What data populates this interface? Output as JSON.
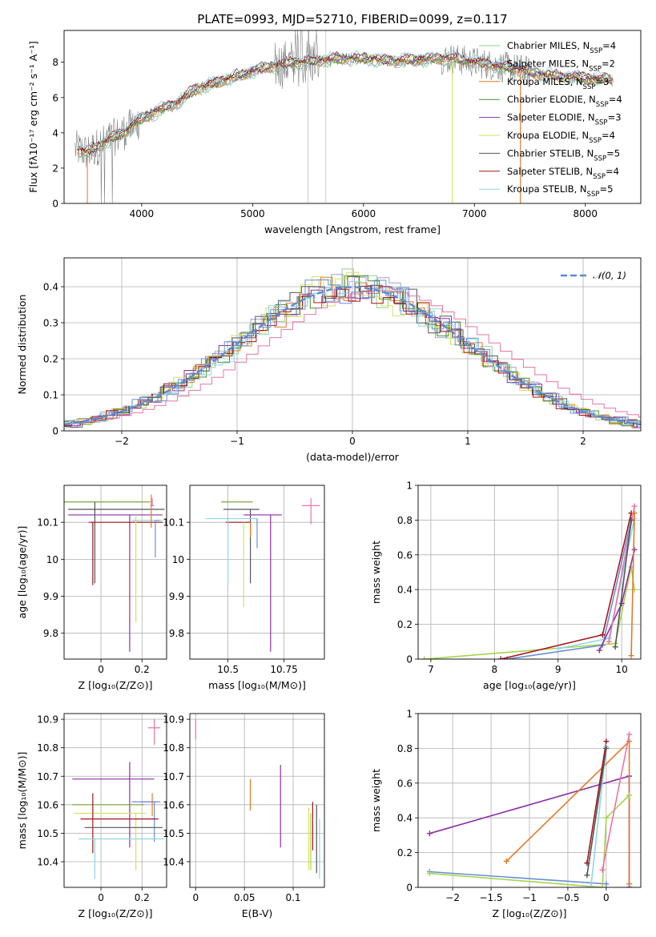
{
  "figure_title": "PLATE=0993, MJD=52710, FIBERID=0099, z=0.117",
  "colors": {
    "Chabrier MILES": "#8fd18f",
    "Salpeter MILES": "#9ca3d8",
    "Kroupa MILES": "#e07b29",
    "Chabrier ELODIE": "#4a8a2c",
    "Salpeter ELODIE": "#8e2fa6",
    "Kroupa ELODIE": "#d6e35b",
    "Chabrier STELIB": "#555555",
    "Salpeter STELIB": "#a3161b",
    "Kroupa STELIB": "#8fd6e6",
    "pink": "#e874a8",
    "blue": "#6a8fd6",
    "lime": "#a6d44a",
    "orange": "#e07b29",
    "olive": "#7aa83a",
    "data": "#808080"
  },
  "chart_data": [
    {
      "id": "spectrum",
      "type": "line",
      "title": "PLATE=0993, MJD=52710, FIBERID=0099, z=0.117",
      "xlabel": "wavelength [Angstrom, rest frame]",
      "ylabel": "Flux [fλ10⁻¹⁷ erg cm⁻² s⁻¹ A⁻¹]",
      "xlim": [
        3300,
        8500
      ],
      "ylim": [
        0,
        9.8
      ],
      "xticks": [
        4000,
        5000,
        6000,
        7000,
        8000
      ],
      "yticks": [
        0,
        2,
        4,
        6,
        8
      ],
      "legend_position": "right",
      "legend": [
        "Chabrier MILES, N_SSP=4",
        "Salpeter MILES, N_SSP=2",
        "Kroupa MILES, N_SSP=3",
        "Chabrier ELODIE, N_SSP=4",
        "Salpeter ELODIE, N_SSP=3",
        "Kroupa ELODIE, N_SSP=4",
        "Chabrier STELIB, N_SSP=5",
        "Salpeter STELIB, N_SSP=4",
        "Kroupa STELIB, N_SSP=5"
      ],
      "legend_keys": [
        "Chabrier MILES",
        "Salpeter MILES",
        "Kroupa MILES",
        "Chabrier ELODIE",
        "Salpeter ELODIE",
        "Kroupa ELODIE",
        "Chabrier STELIB",
        "Salpeter STELIB",
        "Kroupa STELIB"
      ],
      "continuum": {
        "x": [
          3400,
          3500,
          3600,
          3700,
          3800,
          3900,
          4000,
          4100,
          4200,
          4300,
          4400,
          4500,
          4600,
          4700,
          4800,
          4900,
          5000,
          5200,
          5400,
          5600,
          5800,
          6000,
          6200,
          6400,
          6600,
          6800,
          7000,
          7200,
          7400,
          7600,
          7800,
          8000,
          8250
        ],
        "y": [
          3.1,
          2.9,
          3.2,
          3.6,
          3.9,
          4.3,
          4.8,
          5.1,
          5.4,
          5.6,
          6.1,
          6.5,
          6.7,
          6.9,
          7.1,
          7.3,
          7.5,
          7.8,
          8.0,
          8.1,
          8.2,
          8.2,
          8.1,
          8.1,
          8.2,
          8.2,
          8.0,
          7.8,
          7.6,
          7.3,
          7.2,
          7.1,
          7.0
        ]
      }
    },
    {
      "id": "residuals",
      "type": "line",
      "xlabel": "(data-model)/error",
      "ylabel": "Normed distribution",
      "xlim": [
        -2.5,
        2.5
      ],
      "ylim": [
        0,
        0.48
      ],
      "xticks": [
        -2,
        -1,
        0,
        1,
        2
      ],
      "yticks": [
        0.0,
        0.1,
        0.2,
        0.3,
        0.4
      ],
      "legend_position": "top-right",
      "legend": [
        "𝒩(0, 1)"
      ],
      "reference_curve": {
        "name": "𝒩(0, 1)",
        "mu": 0,
        "sigma": 1
      }
    },
    {
      "id": "age-vs-Z",
      "type": "scatter",
      "xlabel": "Z [log₁₀(Z/Z⊙)]",
      "ylabel": "age  [log₁₀(age/yr)]",
      "xlim": [
        -0.18,
        0.32
      ],
      "ylim": [
        9.73,
        10.2
      ],
      "xticks": [
        0.0,
        0.2
      ],
      "yticks": [
        9.8,
        9.9,
        10.0,
        10.1
      ],
      "errorbars": [
        {
          "color": "olive",
          "x": -0.04,
          "y": 10.155,
          "xerr": [
            0.24,
            0.28
          ],
          "yerr": [
            0.0,
            0.0
          ]
        },
        {
          "color": "Chabrier STELIB",
          "x": -0.03,
          "y": 10.135,
          "xerr": [
            0.13,
            0.34
          ],
          "yerr": [
            0.2,
            0.02
          ]
        },
        {
          "color": "Salpeter ELODIE",
          "x": 0.14,
          "y": 10.12,
          "xerr": [
            0.3,
            0.16
          ],
          "yerr": [
            0.37,
            0.0
          ]
        },
        {
          "color": "Salpeter STELIB",
          "x": -0.04,
          "y": 10.1,
          "xerr": [
            0.02,
            0.34
          ],
          "yerr": [
            0.17,
            0.0
          ]
        },
        {
          "color": "Kroupa STELIB",
          "x": 0.25,
          "y": 10.105,
          "xerr": [
            0.1,
            0.05
          ],
          "yerr": [
            0.0,
            0.0
          ]
        },
        {
          "color": "blue",
          "x": 0.265,
          "y": 10.105,
          "xerr": [
            0.0,
            0.02
          ],
          "yerr": [
            0.1,
            0.0
          ]
        },
        {
          "color": "orange",
          "x": 0.245,
          "y": 10.145,
          "xerr": [
            0.0,
            0.0
          ],
          "yerr": [
            0.06,
            0.03
          ]
        },
        {
          "color": "pink",
          "x": 0.25,
          "y": 10.145,
          "xerr": [
            0.01,
            0.01
          ],
          "yerr": [
            0.0,
            0.02
          ]
        },
        {
          "color": "Kroupa ELODIE",
          "x": 0.17,
          "y": 10.1,
          "xerr": [
            0.0,
            0.0
          ],
          "yerr": [
            0.27,
            0.02
          ]
        }
      ]
    },
    {
      "id": "age-vs-mass",
      "type": "scatter",
      "xlabel": "mass [log₁₀(M/M⊙)]",
      "ylabel": "",
      "xlim": [
        10.33,
        10.93
      ],
      "ylim": [
        9.73,
        10.2
      ],
      "xticks": [
        10.5,
        10.75
      ],
      "yticks": [
        9.8,
        9.9,
        10.0,
        10.1
      ],
      "errorbars": [
        {
          "color": "olive",
          "x": 10.57,
          "y": 10.155,
          "xerr": [
            0.1,
            0.04
          ],
          "yerr": [
            0.0,
            0.0
          ]
        },
        {
          "color": "Chabrier STELIB",
          "x": 10.6,
          "y": 10.135,
          "xerr": [
            0.12,
            0.04
          ],
          "yerr": [
            0.2,
            0.0
          ]
        },
        {
          "color": "Salpeter ELODIE",
          "x": 10.69,
          "y": 10.12,
          "xerr": [
            0.12,
            0.05
          ],
          "yerr": [
            0.37,
            0.0
          ]
        },
        {
          "color": "Salpeter STELIB",
          "x": 10.55,
          "y": 10.1,
          "xerr": [
            0.06,
            0.05
          ],
          "yerr": [
            0.0,
            0.0
          ]
        },
        {
          "color": "Kroupa STELIB",
          "x": 10.5,
          "y": 10.11,
          "xerr": [
            0.1,
            0.13
          ],
          "yerr": [
            0.18,
            0.0
          ]
        },
        {
          "color": "pink",
          "x": 10.87,
          "y": 10.145,
          "xerr": [
            0.04,
            0.04
          ],
          "yerr": [
            0.05,
            0.02
          ]
        },
        {
          "color": "Kroupa ELODIE",
          "x": 10.57,
          "y": 10.1,
          "xerr": [
            0.0,
            0.0
          ],
          "yerr": [
            0.23,
            0.0
          ]
        },
        {
          "color": "blue",
          "x": 10.63,
          "y": 10.11,
          "xerr": [
            0.0,
            0.0
          ],
          "yerr": [
            0.08,
            0.0
          ]
        },
        {
          "color": "orange",
          "x": 10.6,
          "y": 10.1,
          "xerr": [
            0.0,
            0.0
          ],
          "yerr": [
            0.04,
            0.0
          ]
        }
      ]
    },
    {
      "id": "mass-weight-vs-age",
      "type": "line",
      "xlabel": "age  [log₁₀(age/yr)]",
      "ylabel": "mass weight",
      "xlim": [
        6.8,
        10.3
      ],
      "ylim": [
        0.0,
        1.0
      ],
      "xticks": [
        7,
        8,
        9,
        10
      ],
      "yticks": [
        0.0,
        0.2,
        0.4,
        0.6,
        0.8,
        1.0
      ],
      "series": [
        {
          "color": "lime",
          "x": [
            6.9,
            9.9,
            10.15,
            10.2
          ],
          "y": [
            0.0,
            0.09,
            0.53,
            0.4
          ]
        },
        {
          "color": "blue",
          "x": [
            8.2,
            9.7,
            10.15
          ],
          "y": [
            0.0,
            0.08,
            0.8
          ]
        },
        {
          "color": "Salpeter STELIB",
          "x": [
            8.1,
            9.7,
            10.15
          ],
          "y": [
            0.0,
            0.14,
            0.84
          ]
        },
        {
          "color": "Kroupa STELIB",
          "x": [
            9.0,
            9.8,
            10.2
          ],
          "y": [
            0.06,
            0.12,
            0.81
          ]
        },
        {
          "color": "Salpeter ELODIE",
          "x": [
            9.65,
            10.0,
            10.2
          ],
          "y": [
            0.05,
            0.32,
            0.63
          ]
        },
        {
          "color": "pink",
          "x": [
            9.8,
            10.2
          ],
          "y": [
            0.1,
            0.88
          ]
        },
        {
          "color": "orange",
          "x": [
            10.15,
            10.2
          ],
          "y": [
            0.02,
            0.84
          ]
        },
        {
          "color": "Chabrier STELIB",
          "x": [
            9.9,
            10.15
          ],
          "y": [
            0.07,
            0.8
          ]
        }
      ]
    },
    {
      "id": "mass-vs-Z",
      "type": "scatter",
      "xlabel": "Z [log₁₀(Z/Z⊙)]",
      "ylabel": "mass [log₁₀(M/M⊙)]",
      "xlim": [
        -0.18,
        0.32
      ],
      "ylim": [
        10.31,
        10.92
      ],
      "xticks": [
        0.0,
        0.2
      ],
      "yticks": [
        10.4,
        10.5,
        10.6,
        10.7,
        10.8,
        10.9
      ],
      "errorbars": [
        {
          "color": "pink",
          "x": 0.26,
          "y": 10.87,
          "xerr": [
            0.03,
            0.03
          ],
          "yerr": [
            0.06,
            0.03
          ]
        },
        {
          "color": "Salpeter ELODIE",
          "x": 0.14,
          "y": 10.69,
          "xerr": [
            0.28,
            0.12
          ],
          "yerr": [
            0.24,
            0.06
          ]
        },
        {
          "color": "orange",
          "x": 0.25,
          "y": 10.61,
          "xerr": [
            0.06,
            0.02
          ],
          "yerr": [
            0.05,
            0.03
          ]
        },
        {
          "color": "blue",
          "x": 0.26,
          "y": 10.61,
          "xerr": [
            0.11,
            0.03
          ],
          "yerr": [
            0.14,
            0.0
          ]
        },
        {
          "color": "olive",
          "x": -0.04,
          "y": 10.6,
          "xerr": [
            0.1,
            0.25
          ],
          "yerr": [
            0.0,
            0.0
          ]
        },
        {
          "color": "Kroupa ELODIE",
          "x": 0.17,
          "y": 10.57,
          "xerr": [
            0.3,
            0.05
          ],
          "yerr": [
            0.2,
            0.0
          ]
        },
        {
          "color": "Salpeter STELIB",
          "x": -0.04,
          "y": 10.55,
          "xerr": [
            0.06,
            0.32
          ],
          "yerr": [
            0.12,
            0.09
          ]
        },
        {
          "color": "Chabrier STELIB",
          "x": 0.0,
          "y": 10.52,
          "xerr": [
            0.08,
            0.3
          ],
          "yerr": [
            0.0,
            0.0
          ]
        },
        {
          "color": "Kroupa STELIB",
          "x": -0.03,
          "y": 10.48,
          "xerr": [
            0.08,
            0.34
          ],
          "yerr": [
            0.14,
            0.0
          ]
        }
      ]
    },
    {
      "id": "mass-vs-EBV",
      "type": "scatter",
      "xlabel": "E(B-V)",
      "ylabel": "",
      "xlim": [
        -0.006,
        0.132
      ],
      "ylim": [
        10.31,
        10.92
      ],
      "xticks": [
        0.0,
        0.05,
        0.1
      ],
      "yticks": [
        10.4,
        10.5,
        10.6,
        10.7,
        10.8,
        10.9
      ],
      "errorbars": [
        {
          "color": "pink",
          "x": 0.0,
          "y": 10.87,
          "xerr": [
            0.0,
            0.0
          ],
          "yerr": [
            0.04,
            0.03
          ]
        },
        {
          "color": "orange",
          "x": 0.056,
          "y": 10.63,
          "xerr": [
            0.0,
            0.0
          ],
          "yerr": [
            0.05,
            0.06
          ]
        },
        {
          "color": "Salpeter ELODIE",
          "x": 0.087,
          "y": 10.6,
          "xerr": [
            0.0,
            0.0
          ],
          "yerr": [
            0.15,
            0.14
          ]
        },
        {
          "color": "Kroupa ELODIE",
          "x": 0.116,
          "y": 10.48,
          "xerr": [
            0.0,
            0.0
          ],
          "yerr": [
            0.11,
            0.11
          ]
        },
        {
          "color": "lime",
          "x": 0.118,
          "y": 10.47,
          "xerr": [
            0.0,
            0.0
          ],
          "yerr": [
            0.1,
            0.1
          ]
        },
        {
          "color": "Salpeter STELIB",
          "x": 0.12,
          "y": 10.52,
          "xerr": [
            0.0,
            0.0
          ],
          "yerr": [
            0.08,
            0.09
          ]
        },
        {
          "color": "Chabrier STELIB",
          "x": 0.124,
          "y": 10.48,
          "xerr": [
            0.0,
            0.0
          ],
          "yerr": [
            0.12,
            0.12
          ]
        },
        {
          "color": "Kroupa STELIB",
          "x": 0.127,
          "y": 10.45,
          "xerr": [
            0.0,
            0.0
          ],
          "yerr": [
            0.11,
            0.1
          ]
        }
      ]
    },
    {
      "id": "mass-weight-vs-Z",
      "type": "line",
      "xlabel": "Z [log₁₀(Z/Z⊙)]",
      "ylabel": "mass weight",
      "xlim": [
        -2.45,
        0.45
      ],
      "ylim": [
        0.0,
        1.0
      ],
      "xticks": [
        -2.0,
        -1.5,
        -1.0,
        -0.5,
        0.0
      ],
      "yticks": [
        0.0,
        0.2,
        0.4,
        0.6,
        0.8,
        1.0
      ],
      "series": [
        {
          "color": "Salpeter ELODIE",
          "x": [
            -2.3,
            0.3,
            0.3
          ],
          "y": [
            0.31,
            0.64,
            0.0
          ]
        },
        {
          "color": "orange",
          "x": [
            -1.3,
            0.3,
            0.3
          ],
          "y": [
            0.15,
            0.84,
            0.02
          ]
        },
        {
          "color": "blue",
          "x": [
            -2.3,
            0.0
          ],
          "y": [
            0.09,
            0.02
          ]
        },
        {
          "color": "lime",
          "x": [
            -2.3,
            -0.05,
            0.0,
            0.3
          ],
          "y": [
            0.08,
            0.0,
            0.4,
            0.53
          ]
        },
        {
          "color": "Salpeter STELIB",
          "x": [
            -0.25,
            0.0
          ],
          "y": [
            0.14,
            0.84
          ]
        },
        {
          "color": "Kroupa STELIB",
          "x": [
            -0.2,
            0.0
          ],
          "y": [
            0.0,
            0.81
          ]
        },
        {
          "color": "pink",
          "x": [
            -0.05,
            0.3
          ],
          "y": [
            0.1,
            0.88
          ]
        },
        {
          "color": "Chabrier STELIB",
          "x": [
            -0.25,
            0.0
          ],
          "y": [
            0.07,
            0.8
          ]
        }
      ]
    }
  ]
}
